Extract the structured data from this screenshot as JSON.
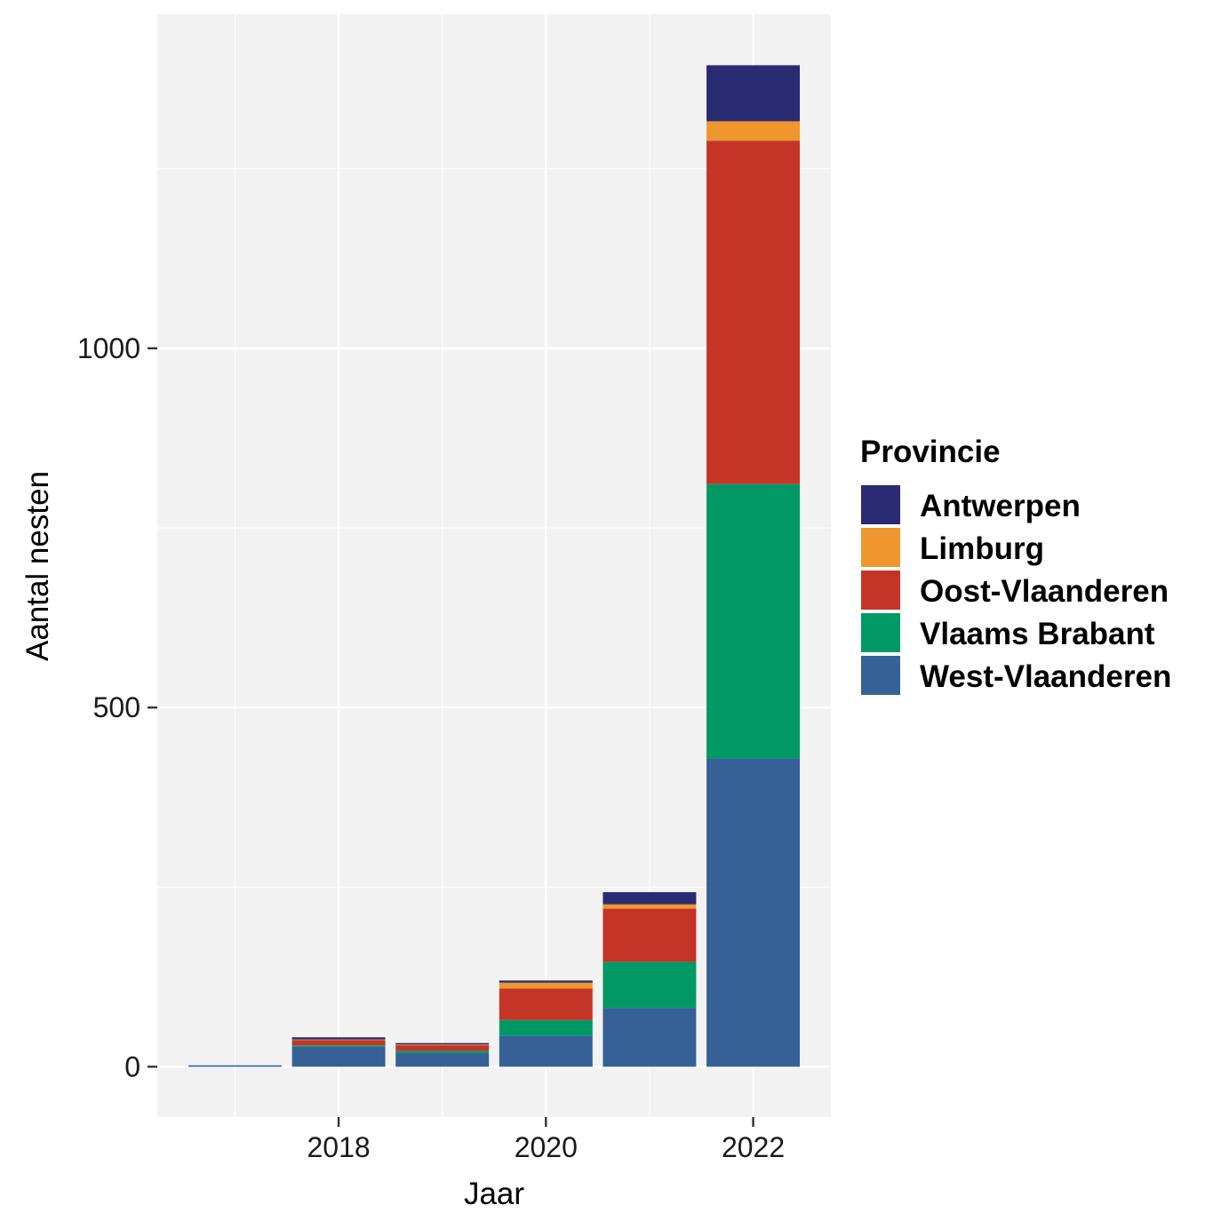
{
  "chart_data": {
    "type": "bar",
    "stacked": true,
    "x": [
      2017,
      2018,
      2019,
      2020,
      2021,
      2022
    ],
    "x_ticks": [
      2018,
      2020,
      2022
    ],
    "x_tick_labels": [
      "2018",
      "2020",
      "2022"
    ],
    "y_ticks": [
      0,
      500,
      1000
    ],
    "y_tick_labels": [
      "0",
      "500",
      "1000"
    ],
    "xlim": [
      2016.25,
      2022.75
    ],
    "ylim": [
      -70,
      1465
    ],
    "xlabel": "Jaar",
    "ylabel": "Aantal nesten",
    "legend_title": "Provincie",
    "legend_position": "right",
    "grid": true,
    "panel_background": "#f2f2f2",
    "grid_color": "#ffffff",
    "series": [
      {
        "name": "West-Vlaanderen",
        "color": "#366196",
        "values": [
          2,
          28,
          19,
          43,
          82,
          429
        ]
      },
      {
        "name": "Vlaams Brabant",
        "color": "#009966",
        "values": [
          0,
          2,
          3,
          22,
          64,
          382
        ]
      },
      {
        "name": "Oost-Vlaanderen",
        "color": "#c43527",
        "values": [
          0,
          7,
          8,
          44,
          74,
          478
        ]
      },
      {
        "name": "Limburg",
        "color": "#f0962e",
        "values": [
          0,
          1,
          1,
          8,
          6,
          27
        ]
      },
      {
        "name": "Antwerpen",
        "color": "#2a2b73",
        "values": [
          0,
          3,
          2,
          3,
          17,
          78
        ]
      }
    ],
    "legend_order": [
      "Antwerpen",
      "Limburg",
      "Oost-Vlaanderen",
      "Vlaams Brabant",
      "West-Vlaanderen"
    ]
  }
}
